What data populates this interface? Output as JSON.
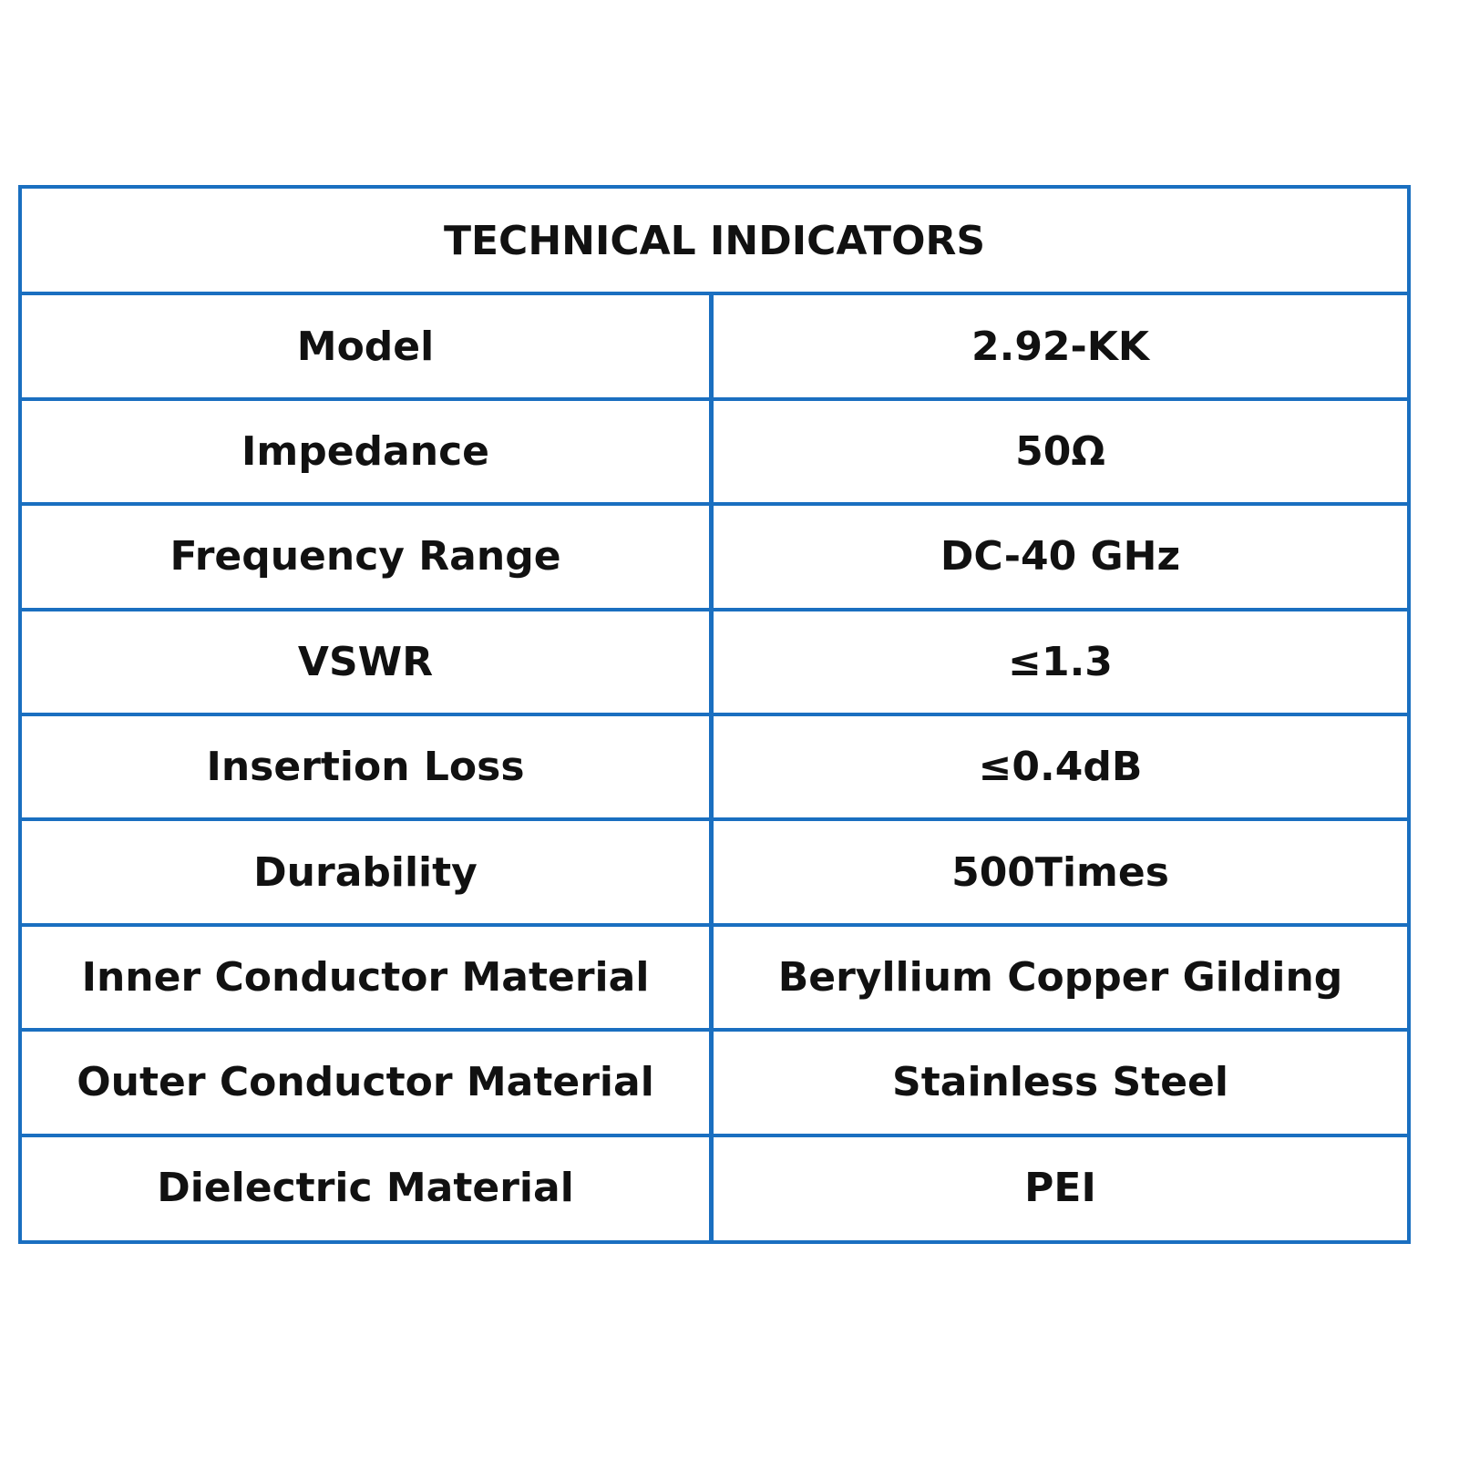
{
  "table": {
    "title": "TECHNICAL INDICATORS",
    "rows": [
      [
        "Model",
        "2.92-KK"
      ],
      [
        "Impedance",
        "50Ω"
      ],
      [
        "Frequency Range",
        "DC-40 GHz"
      ],
      [
        "VSWR",
        "≤1.3"
      ],
      [
        "Insertion Loss",
        "≤0.4dB"
      ],
      [
        "Durability",
        "500Times"
      ],
      [
        "Inner Conductor Material",
        "Beryllium Copper Gilding"
      ],
      [
        "Outer Conductor Material",
        "Stainless Steel"
      ],
      [
        "Dielectric Material",
        "PEI"
      ]
    ]
  }
}
